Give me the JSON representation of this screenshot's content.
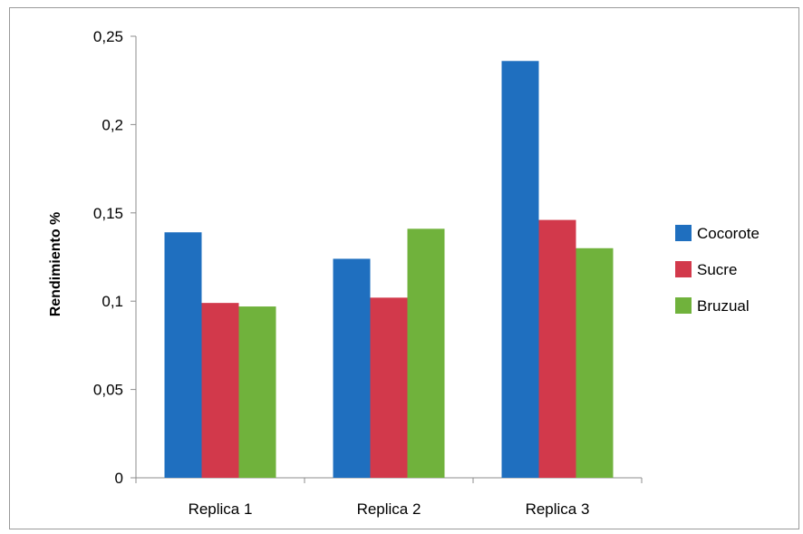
{
  "chart_data": {
    "type": "bar",
    "title": "",
    "xlabel": "",
    "ylabel": "Rendimiento %",
    "categories": [
      "Replica 1",
      "Replica 2",
      "Replica 3"
    ],
    "series": [
      {
        "name": "Cocorote",
        "color": "#1F6FBF",
        "values": [
          0.139,
          0.124,
          0.236
        ]
      },
      {
        "name": "Sucre",
        "color": "#D2394B",
        "values": [
          0.099,
          0.102,
          0.146
        ]
      },
      {
        "name": "Bruzual",
        "color": "#70B23C",
        "values": [
          0.097,
          0.141,
          0.13
        ]
      }
    ],
    "ylim": [
      0,
      0.25
    ],
    "yticks": [
      0,
      0.05,
      0.1,
      0.15,
      0.2,
      0.25
    ],
    "ytick_labels": [
      "0",
      "0,05",
      "0,1",
      "0,15",
      "0,2",
      "0,25"
    ],
    "grid": false,
    "legend_position": "right"
  }
}
